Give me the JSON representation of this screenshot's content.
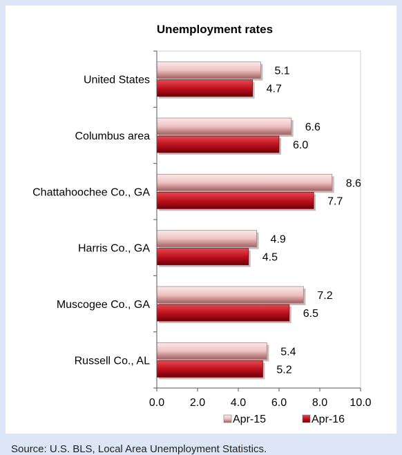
{
  "chart_data": {
    "type": "bar",
    "orientation": "horizontal",
    "title": "Unemployment rates",
    "categories": [
      "United States",
      "Columbus area",
      "Chattahoochee Co., GA",
      "Harris Co., GA",
      "Muscogee Co., GA",
      "Russell Co., AL"
    ],
    "series": [
      {
        "name": "Apr-15",
        "values": [
          5.1,
          6.6,
          8.6,
          4.9,
          7.2,
          5.4
        ],
        "color": "#f2c4c4"
      },
      {
        "name": "Apr-16",
        "values": [
          4.7,
          6.0,
          7.7,
          4.5,
          6.5,
          5.2
        ],
        "color": "#c0121e"
      }
    ],
    "xlim": [
      0,
      10
    ],
    "xticks": [
      "0.0",
      "2.0",
      "4.0",
      "6.0",
      "8.0",
      "10.0"
    ],
    "grid": false,
    "legend": "bottom"
  },
  "source_note": "Source: U.S. BLS, Local Area Unemployment Statistics."
}
